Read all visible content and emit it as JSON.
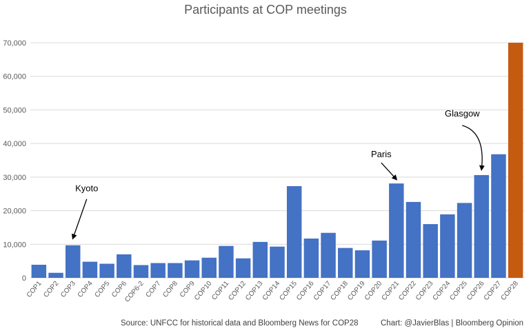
{
  "chart_data": {
    "type": "bar",
    "title": "Participants at COP meetings",
    "categories": [
      "COP1",
      "COP2",
      "COP3",
      "COP4",
      "COP5",
      "COP6",
      "COP6-2",
      "COP7",
      "COP8",
      "COP9",
      "COP10",
      "COP11",
      "COP12",
      "COP13",
      "COP14",
      "COP15",
      "COP16",
      "COP17",
      "COP18",
      "COP19",
      "COP20",
      "COP21",
      "COP22",
      "COP23",
      "COP24",
      "COP25",
      "COP26",
      "COP27",
      "COP28"
    ],
    "values": [
      3900,
      1500,
      9700,
      4800,
      4200,
      7000,
      3800,
      4400,
      4400,
      5200,
      6000,
      9500,
      5800,
      10700,
      9300,
      27300,
      11700,
      13400,
      8900,
      8200,
      11100,
      28100,
      22600,
      16000,
      18900,
      22300,
      30600,
      36800,
      70000
    ],
    "ylim": [
      0,
      70000
    ],
    "yticks": [
      "0",
      "10,000",
      "20,000",
      "30,000",
      "40,000",
      "50,000",
      "60,000",
      "70,000"
    ],
    "grid": true,
    "colors": {
      "default": "#4472c4",
      "highlight": "#c55a11",
      "highlight_category": "COP28"
    },
    "annotations": [
      {
        "text": "Kyoto",
        "category": "COP3"
      },
      {
        "text": "Paris",
        "category": "COP21"
      },
      {
        "text": "Glasgow",
        "category": "COP26"
      }
    ],
    "source": "Source: UNFCC for historical data and Bloomberg News for COP28",
    "credit": "Chart: @JavierBlas | Bloomberg Opinion"
  }
}
